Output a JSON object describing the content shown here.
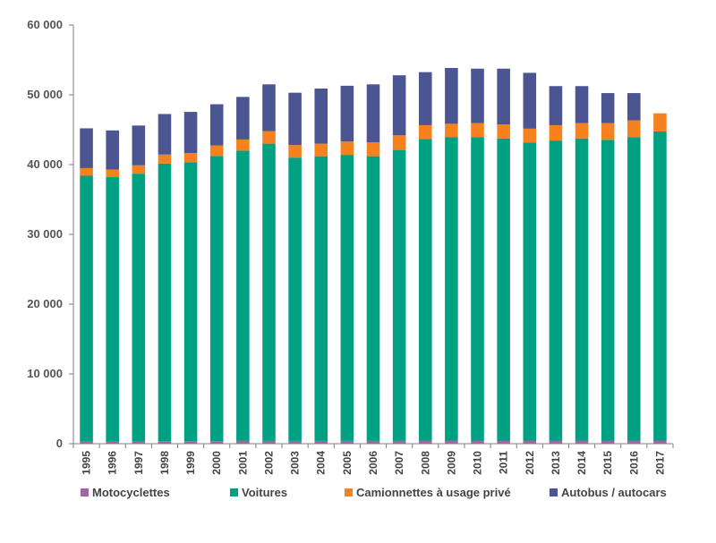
{
  "chart_data": {
    "type": "bar",
    "stacked": true,
    "title": "",
    "xlabel": "",
    "ylabel": "",
    "ylim": [
      0,
      60000
    ],
    "yticks": [
      0,
      10000,
      20000,
      30000,
      40000,
      50000,
      60000
    ],
    "ytick_labels": [
      "0",
      "10 000",
      "20 000",
      "30 000",
      "40 000",
      "50 000",
      "60 000"
    ],
    "grid": false,
    "legend_position": "bottom",
    "categories": [
      "1995",
      "1996",
      "1997",
      "1998",
      "1999",
      "2000",
      "2001",
      "2002",
      "2003",
      "2004",
      "2005",
      "2006",
      "2007",
      "2008",
      "2009",
      "2010",
      "2011",
      "2012",
      "2013",
      "2014",
      "2015",
      "2016",
      "2017"
    ],
    "series": [
      {
        "name": "Motocyclettes",
        "color": "#a066a8",
        "values": [
          300,
          300,
          300,
          350,
          350,
          350,
          400,
          400,
          400,
          400,
          400,
          400,
          400,
          450,
          450,
          450,
          450,
          450,
          450,
          450,
          450,
          450,
          450
        ]
      },
      {
        "name": "Voitures",
        "color": "#00a082",
        "values": [
          38100,
          37900,
          38400,
          39800,
          40000,
          40900,
          41600,
          42600,
          40600,
          40800,
          41000,
          40800,
          41700,
          43200,
          43500,
          43500,
          43300,
          42700,
          43000,
          43300,
          43100,
          43500,
          44300
        ]
      },
      {
        "name": "Camionnettes à usage privé",
        "color": "#f5821f",
        "values": [
          1100,
          1100,
          1200,
          1300,
          1300,
          1500,
          1600,
          1800,
          1800,
          1800,
          1900,
          2000,
          2100,
          2000,
          1900,
          2000,
          2000,
          2000,
          2200,
          2200,
          2400,
          2400,
          2600
        ]
      },
      {
        "name": "Autobus / autocars",
        "color": "#4a5591",
        "values": [
          5700,
          5600,
          5700,
          5800,
          5900,
          5900,
          6100,
          6700,
          7500,
          7900,
          8000,
          8300,
          8600,
          7600,
          8000,
          7800,
          8000,
          8000,
          5600,
          5300,
          4300,
          3900,
          0
        ]
      }
    ]
  }
}
